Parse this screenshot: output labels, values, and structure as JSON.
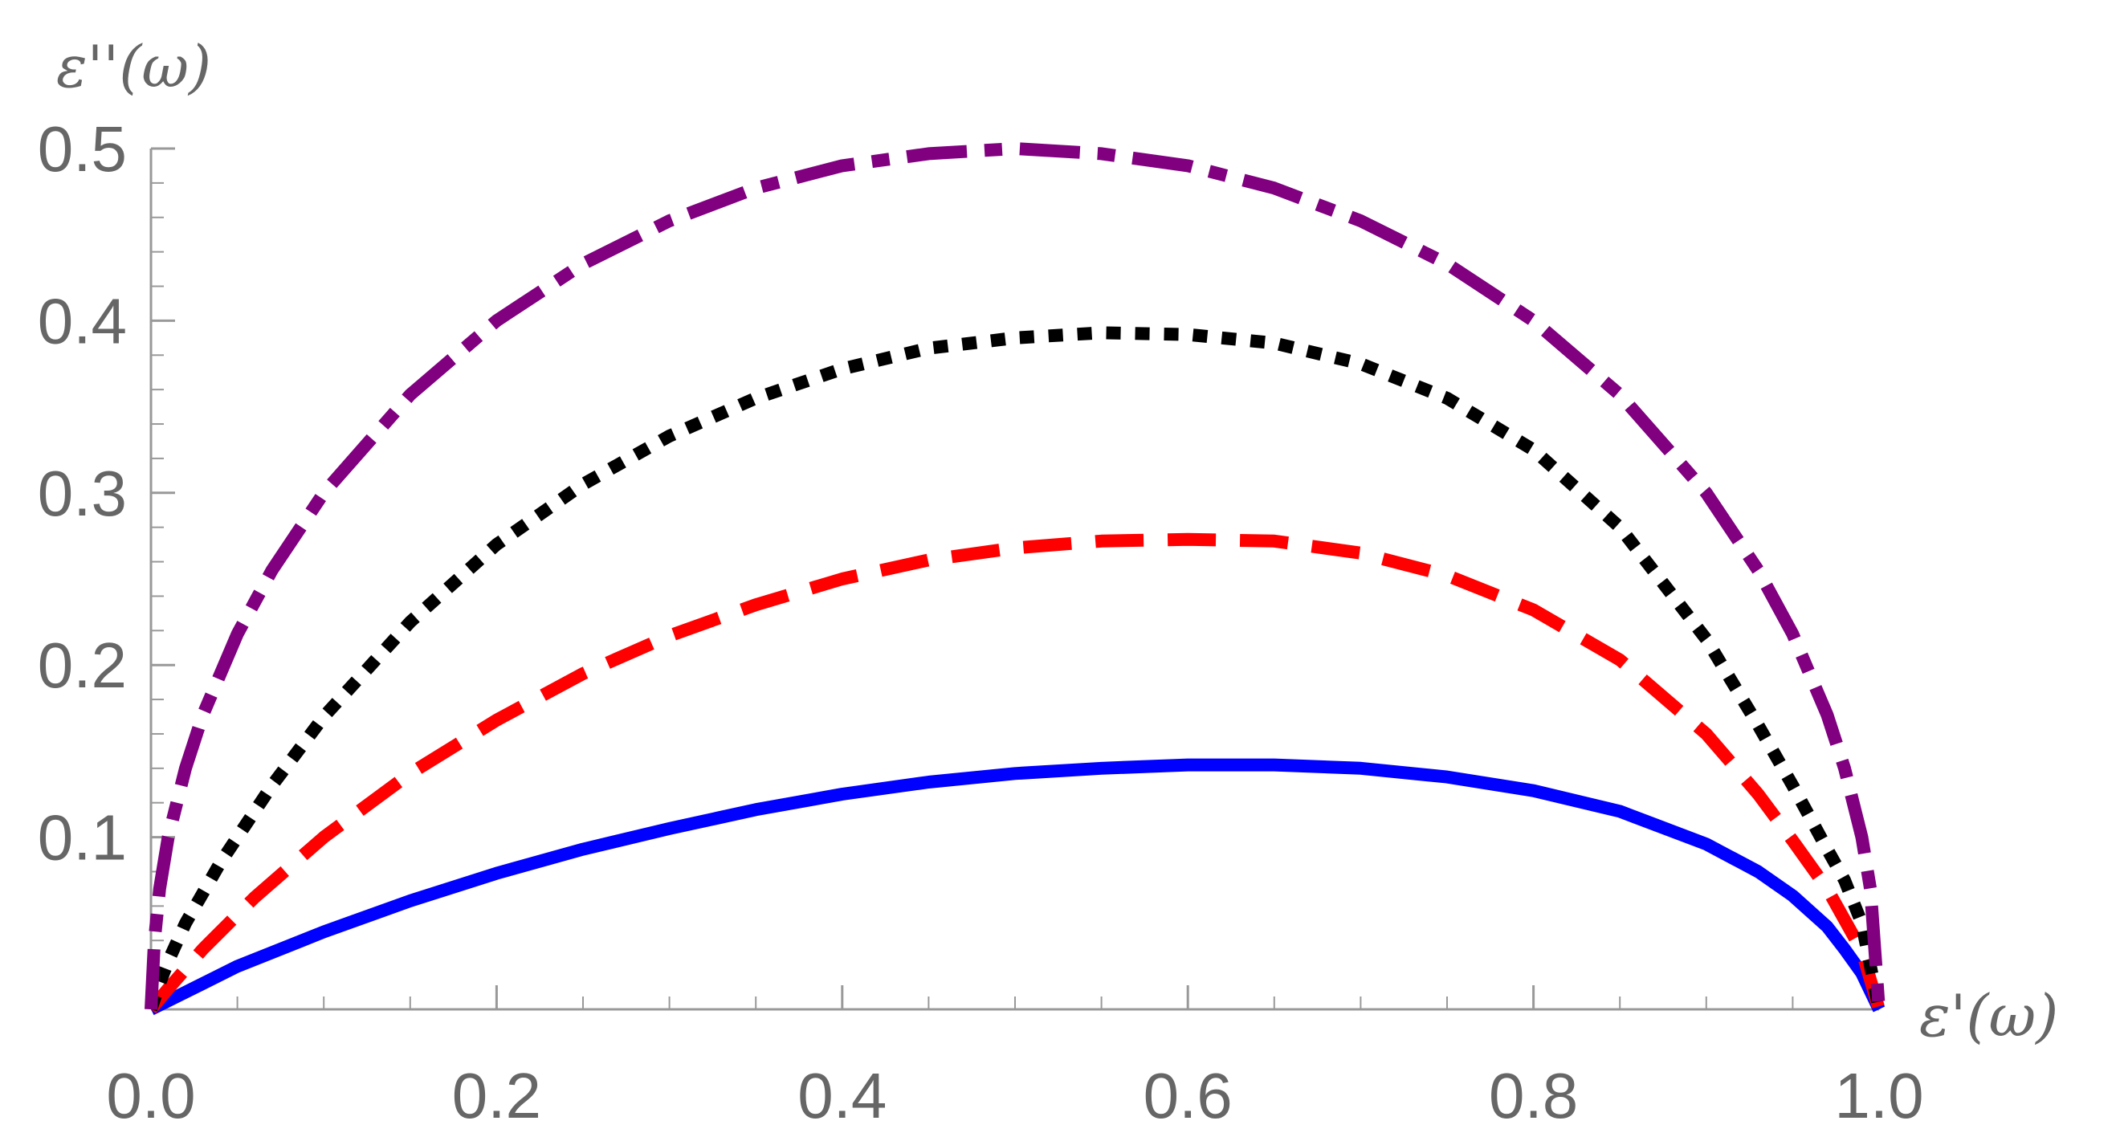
{
  "chart_data": {
    "type": "line",
    "title": "",
    "xlabel": "ε'(ω)",
    "ylabel": "ε''(ω)",
    "xlim": [
      0,
      1.0
    ],
    "ylim": [
      0,
      0.5
    ],
    "xticks": [
      "0.0",
      "0.2",
      "0.4",
      "0.6",
      "0.8",
      "1.0"
    ],
    "yticks": [
      "0.1",
      "0.2",
      "0.3",
      "0.4",
      "0.5"
    ],
    "grid": false,
    "legend": "none",
    "series": [
      {
        "style": "solid",
        "color": "#0000FF",
        "x": [
          0.0,
          0.02,
          0.05,
          0.1,
          0.15,
          0.2,
          0.25,
          0.3,
          0.35,
          0.4,
          0.45,
          0.5,
          0.55,
          0.6,
          0.65,
          0.7,
          0.75,
          0.8,
          0.85,
          0.9,
          0.93,
          0.95,
          0.97,
          0.98,
          0.99,
          1.0
        ],
        "y": [
          0.0,
          0.01,
          0.025,
          0.045,
          0.063,
          0.079,
          0.093,
          0.105,
          0.116,
          0.125,
          0.132,
          0.137,
          0.14,
          0.142,
          0.142,
          0.14,
          0.135,
          0.127,
          0.115,
          0.096,
          0.08,
          0.066,
          0.048,
          0.035,
          0.021,
          0.0
        ]
      },
      {
        "style": "dashed",
        "color": "#FF0000",
        "x": [
          0.0,
          0.01,
          0.03,
          0.06,
          0.1,
          0.15,
          0.2,
          0.25,
          0.3,
          0.35,
          0.4,
          0.45,
          0.5,
          0.55,
          0.6,
          0.65,
          0.7,
          0.75,
          0.8,
          0.85,
          0.9,
          0.93,
          0.95,
          0.97,
          0.98,
          0.99,
          1.0
        ],
        "y": [
          0.0,
          0.012,
          0.035,
          0.065,
          0.1,
          0.137,
          0.168,
          0.195,
          0.217,
          0.235,
          0.25,
          0.261,
          0.268,
          0.272,
          0.273,
          0.272,
          0.265,
          0.252,
          0.232,
          0.203,
          0.16,
          0.125,
          0.098,
          0.07,
          0.052,
          0.034,
          0.0
        ]
      },
      {
        "style": "dotted",
        "color": "#000000",
        "x": [
          0.0,
          0.005,
          0.01,
          0.02,
          0.04,
          0.07,
          0.1,
          0.15,
          0.2,
          0.25,
          0.3,
          0.35,
          0.4,
          0.45,
          0.5,
          0.55,
          0.6,
          0.65,
          0.7,
          0.75,
          0.8,
          0.85,
          0.9,
          0.93,
          0.95,
          0.97,
          0.98,
          0.99,
          1.0
        ],
        "y": [
          0.0,
          0.015,
          0.028,
          0.05,
          0.085,
          0.13,
          0.17,
          0.225,
          0.27,
          0.305,
          0.333,
          0.355,
          0.372,
          0.384,
          0.39,
          0.393,
          0.392,
          0.387,
          0.375,
          0.355,
          0.325,
          0.28,
          0.215,
          0.165,
          0.13,
          0.093,
          0.075,
          0.05,
          0.0
        ]
      },
      {
        "style": "dash-dot",
        "color": "#800080",
        "x": [
          0.0,
          0.002,
          0.005,
          0.01,
          0.02,
          0.03,
          0.05,
          0.07,
          0.1,
          0.15,
          0.2,
          0.25,
          0.3,
          0.35,
          0.4,
          0.45,
          0.5,
          0.55,
          0.6,
          0.65,
          0.7,
          0.75,
          0.8,
          0.85,
          0.9,
          0.93,
          0.95,
          0.97,
          0.98,
          0.99,
          0.995,
          1.0
        ],
        "y": [
          0.0,
          0.04,
          0.07,
          0.1,
          0.14,
          0.171,
          0.218,
          0.255,
          0.3,
          0.357,
          0.4,
          0.433,
          0.458,
          0.477,
          0.49,
          0.497,
          0.5,
          0.497,
          0.49,
          0.477,
          0.458,
          0.433,
          0.4,
          0.357,
          0.3,
          0.255,
          0.218,
          0.171,
          0.14,
          0.1,
          0.07,
          0.0
        ]
      }
    ]
  }
}
